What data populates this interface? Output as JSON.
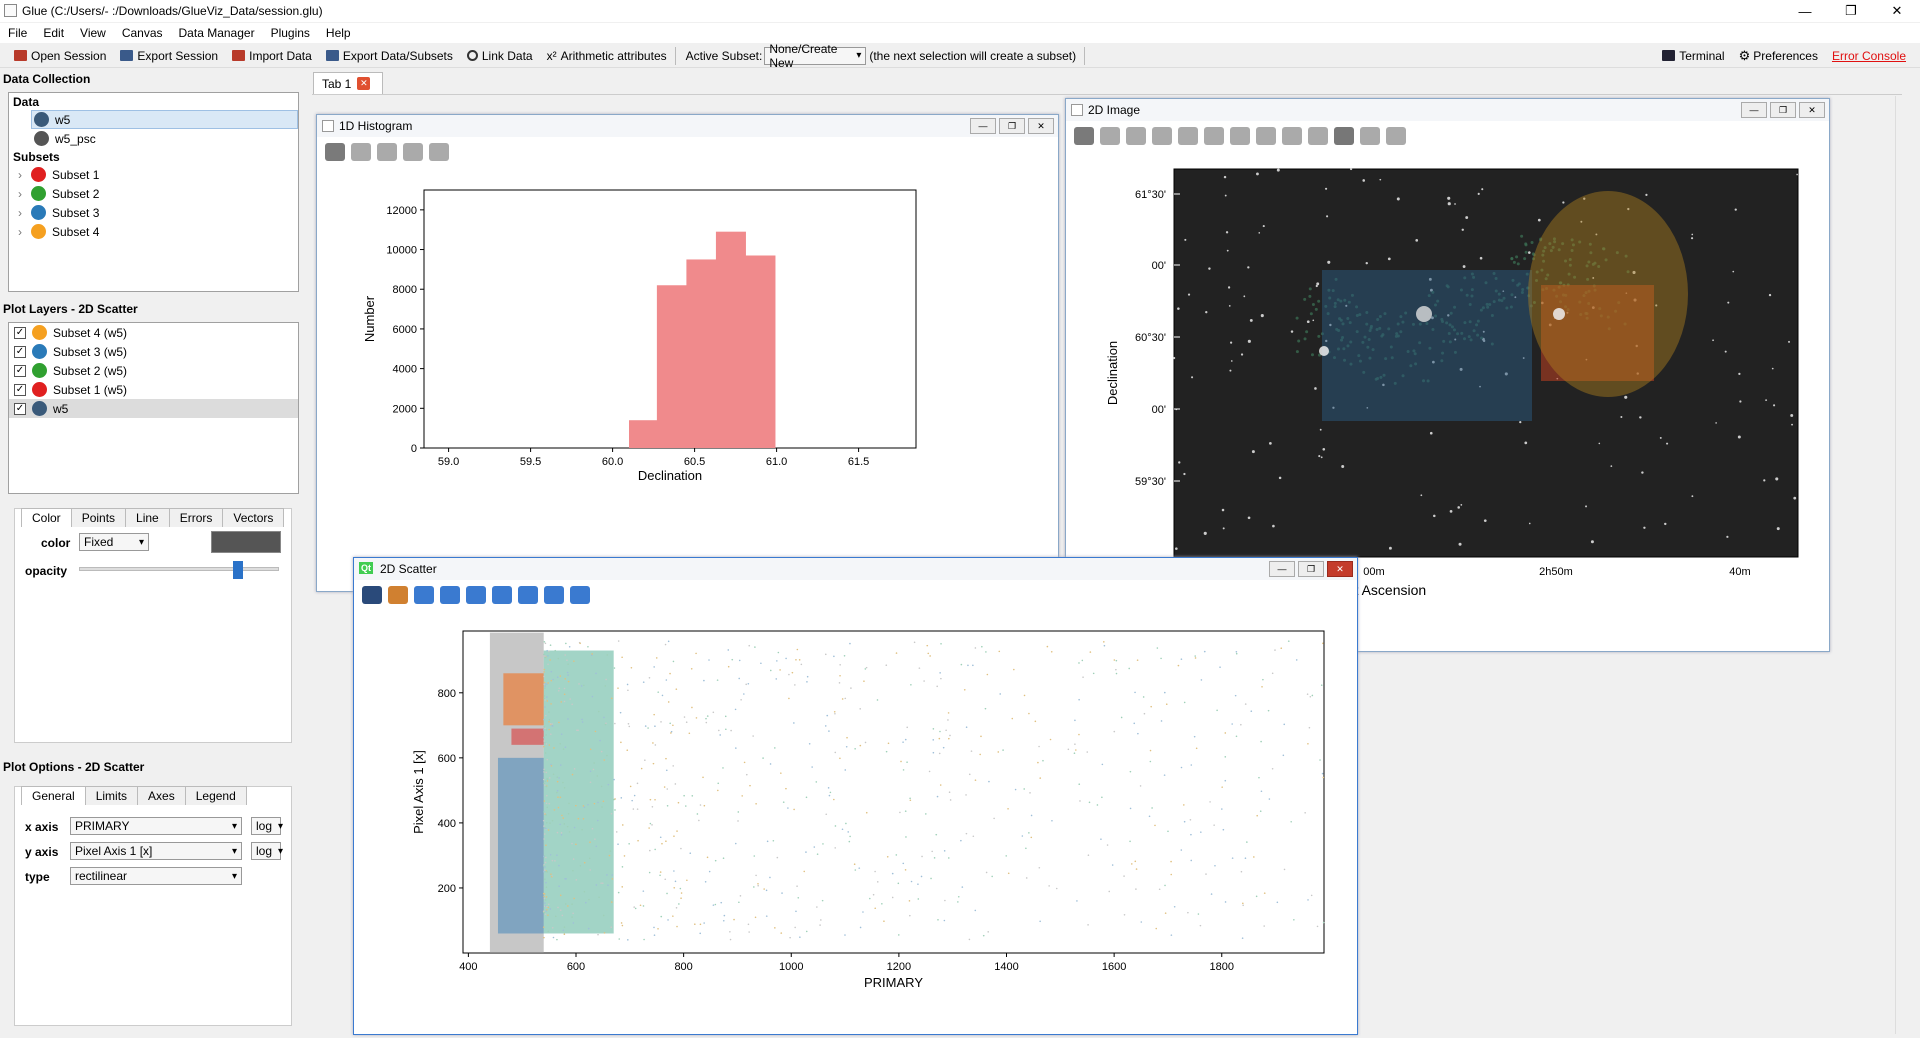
{
  "window": {
    "title": "Glue (C:/Users/‐        :/Downloads/GlueViz_Data/session.glu)",
    "minimize": "—",
    "maximize": "❐",
    "close": "✕"
  },
  "menu": [
    "File",
    "Edit",
    "View",
    "Canvas",
    "Data Manager",
    "Plugins",
    "Help"
  ],
  "toolbar": {
    "open_session": "Open Session",
    "export_session": "Export Session",
    "import_data": "Import Data",
    "export_data": "Export Data/Subsets",
    "link_data": "Link Data",
    "arith": "Arithmetic attributes",
    "arith_prefix": "x²",
    "active_subset_label": "Active Subset:",
    "active_subset_value": "None/Create New",
    "hint": "(the next selection will create a subset)",
    "terminal": "Terminal",
    "preferences": "Preferences",
    "error_console": "Error Console"
  },
  "data_collection": {
    "title": "Data Collection",
    "data_header": "Data",
    "data": [
      {
        "name": "w5",
        "color": "#3a5a7a"
      },
      {
        "name": "w5_psc",
        "color": "#555555"
      }
    ],
    "subsets_header": "Subsets",
    "subsets": [
      {
        "name": "Subset 1",
        "color": "#e02020"
      },
      {
        "name": "Subset 2",
        "color": "#30a030"
      },
      {
        "name": "Subset 3",
        "color": "#2a7ab8"
      },
      {
        "name": "Subset 4",
        "color": "#f5a020"
      }
    ]
  },
  "plot_layers": {
    "title": "Plot Layers - 2D Scatter",
    "items": [
      {
        "name": "Subset 4 (w5)",
        "color": "#f5a020"
      },
      {
        "name": "Subset 3 (w5)",
        "color": "#2a7ab8"
      },
      {
        "name": "Subset 2 (w5)",
        "color": "#30a030"
      },
      {
        "name": "Subset 1 (w5)",
        "color": "#e02020"
      },
      {
        "name": "w5",
        "color": "#3a5a7a"
      }
    ]
  },
  "layer_style": {
    "tabs": [
      "Color",
      "Points",
      "Line",
      "Errors",
      "Vectors"
    ],
    "color_label": "color",
    "color_mode": "Fixed",
    "swatch": "#555555",
    "opacity_label": "opacity",
    "opacity": 0.8
  },
  "plot_options": {
    "title": "Plot Options - 2D Scatter",
    "tabs": [
      "General",
      "Limits",
      "Axes",
      "Legend"
    ],
    "x_label": "x axis",
    "x_value": "PRIMARY",
    "y_label": "y axis",
    "y_value": "Pixel Axis 1 [x]",
    "type_label": "type",
    "type_value": "rectilinear",
    "log": "log"
  },
  "canvas_tab": {
    "label": "Tab 1",
    "close": "✕"
  },
  "hist_window": {
    "title": "1D Histogram"
  },
  "image_window": {
    "title": "2D Image"
  },
  "scatter_window": {
    "title": "2D Scatter",
    "badge": "Qt"
  },
  "chart_data": [
    {
      "type": "bar",
      "xlabel": "Declination",
      "ylabel": "Number",
      "xlim": [
        58.85,
        61.85
      ],
      "ylim": [
        0,
        13000
      ],
      "xticks": [
        "59.0",
        "59.5",
        "60.0",
        "60.5",
        "61.0",
        "61.5"
      ],
      "xtick_values": [
        59.0,
        59.5,
        60.0,
        60.5,
        61.0,
        61.5
      ],
      "yticks": [
        "0",
        "2000",
        "4000",
        "6000",
        "8000",
        "10000",
        "12000"
      ],
      "ytick_values": [
        0,
        2000,
        4000,
        6000,
        8000,
        10000,
        12000
      ],
      "bins": [
        [
          60.1,
          60.27
        ],
        [
          60.27,
          60.45
        ],
        [
          60.45,
          60.63
        ],
        [
          60.63,
          60.81
        ],
        [
          60.81,
          60.99
        ]
      ],
      "values": [
        1400,
        8200,
        9500,
        10900,
        9700
      ],
      "color": "#f08a8c"
    },
    {
      "type": "heatmap",
      "xlabel": "Right Ascension",
      "ylabel": "Declination",
      "yticks": [
        "61°30'",
        "00'",
        "60°30'",
        "00'",
        "59°30'"
      ],
      "xticks": [
        "00m",
        "2h50m",
        "40m"
      ]
    },
    {
      "type": "scatter",
      "xlabel": "PRIMARY",
      "ylabel": "Pixel Axis 1 [x]",
      "xlim": [
        390,
        1990
      ],
      "ylim": [
        0,
        990
      ],
      "xticks": [
        "400",
        "600",
        "800",
        "1000",
        "1200",
        "1400",
        "1600",
        "1800"
      ],
      "xtick_values": [
        400,
        600,
        800,
        1000,
        1200,
        1400,
        1600,
        1800
      ],
      "yticks": [
        "200",
        "400",
        "600",
        "800"
      ],
      "ytick_values": [
        200,
        400,
        600,
        800
      ]
    }
  ]
}
